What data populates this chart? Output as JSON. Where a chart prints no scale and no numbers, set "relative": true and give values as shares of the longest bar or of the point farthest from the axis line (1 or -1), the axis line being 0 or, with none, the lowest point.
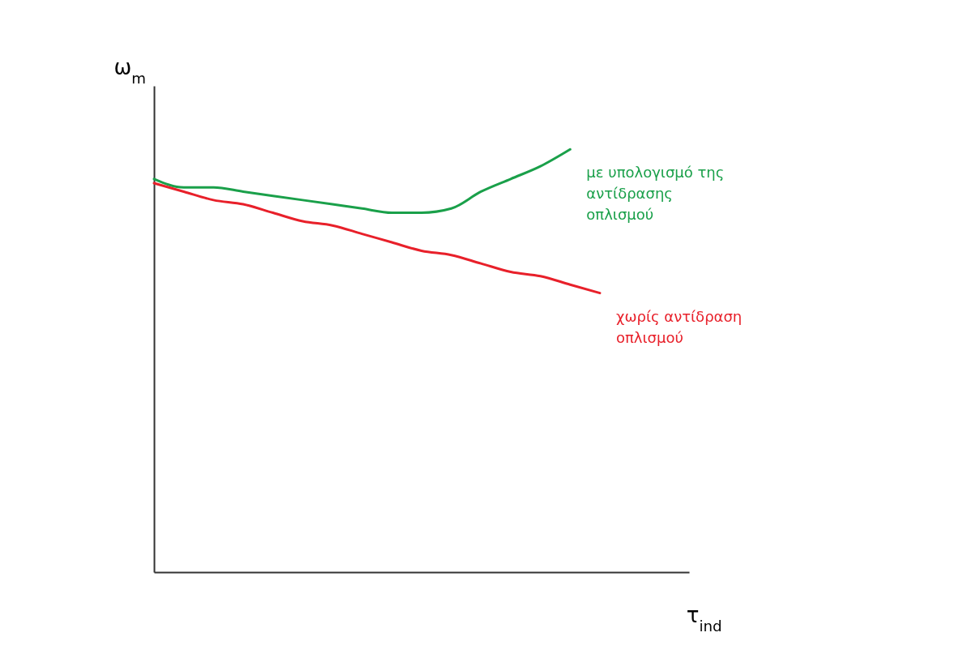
{
  "chart_data": {
    "type": "line",
    "relative": true,
    "xlabel": "τ$_{ind}$",
    "ylabel": "ω$_{m}$",
    "tick_labels": false,
    "grid": false,
    "legend": false,
    "marker": "none",
    "categories": [
      null,
      null,
      null,
      null,
      null,
      null,
      null,
      null,
      null,
      null,
      null,
      null,
      null,
      null,
      null,
      null,
      null,
      null,
      null
    ],
    "series": [
      {
        "name": "με υπολογισμό της αντίδρασης οπλισμού",
        "color": "#1aa04a",
        "values": [
          0.93,
          0.91,
          0.91,
          0.9,
          0.89,
          0.88,
          0.87,
          0.86,
          0.85,
          0.85,
          0.86,
          0.9,
          0.93,
          0.96,
          1.0,
          null,
          null,
          null,
          null
        ]
      },
      {
        "name": "χωρίς αντίδραση οπλισμού",
        "color": "#e8202a",
        "values": [
          0.92,
          0.9,
          0.88,
          0.87,
          0.85,
          0.83,
          0.82,
          0.8,
          0.78,
          0.76,
          0.75,
          0.73,
          0.71,
          0.7,
          0.68,
          0.66,
          null,
          null,
          null
        ]
      }
    ]
  }
}
